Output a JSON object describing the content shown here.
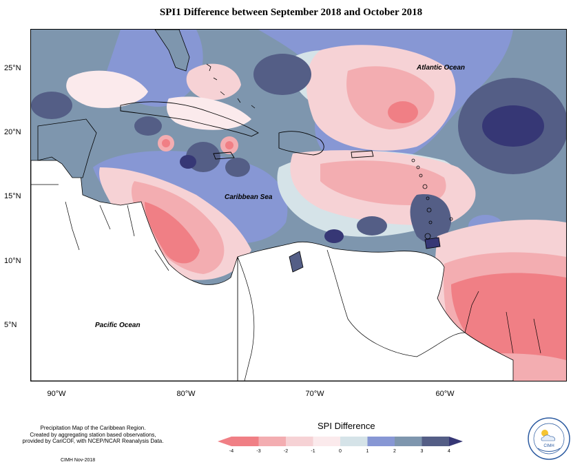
{
  "title": "SPI1 Difference between September 2018 and October 2018",
  "latitude_labels": [
    "25°N",
    "20°N",
    "15°N",
    "10°N",
    "5°N"
  ],
  "longitude_labels": [
    "90°W",
    "80°W",
    "70°W",
    "60°W"
  ],
  "ocean_labels": {
    "atlantic": "Atlantic Ocean",
    "caribbean": "Caribbean Sea",
    "pacific": "Pacific Ocean"
  },
  "info_lines": [
    "Precipitation Map of the Caribbean Region.",
    "Created by aggregating station based observations,",
    "provided by CariCOF, with NCEP/NCAR Reanalysis Data."
  ],
  "credit": "CIMH Nov-2018",
  "legend": {
    "title": "SPI Difference",
    "ticks": [
      "-4",
      "-3",
      "-2",
      "-1",
      "0",
      "1",
      "2",
      "3",
      "4"
    ],
    "colors": [
      "#f07f85",
      "#f3adb1",
      "#f6d2d5",
      "#fbeaec",
      "#d5e3e8",
      "#8797d4",
      "#7e96ae",
      "#545e86"
    ],
    "end_left_color": "#f07f85",
    "end_right_color": "#363775"
  },
  "logo": {
    "name": "CIMH",
    "icon": "cimh-logo-icon"
  }
}
